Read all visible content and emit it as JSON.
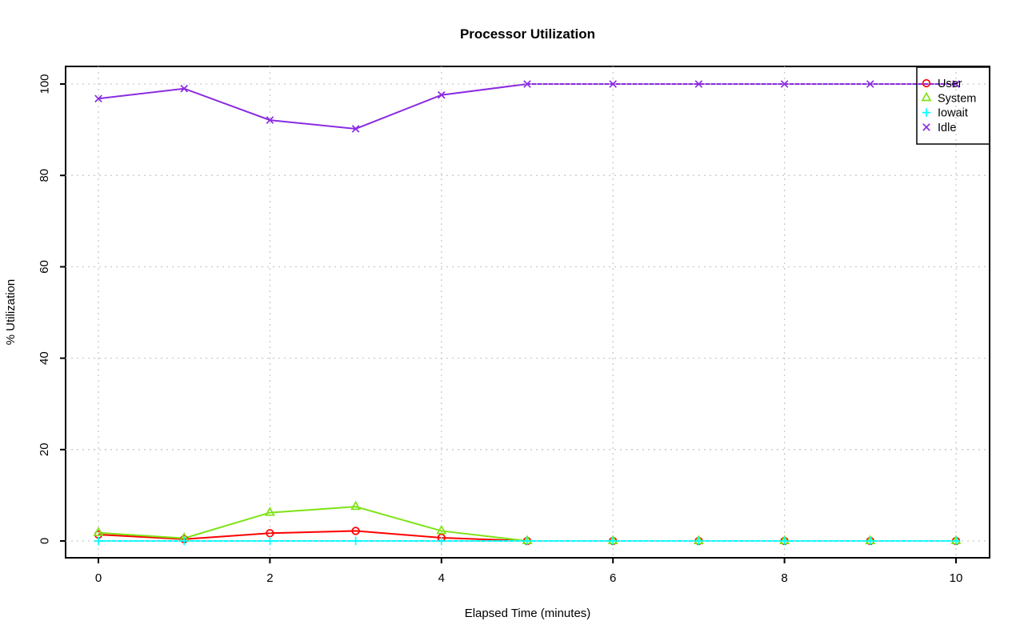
{
  "page": {
    "background_color": "#ffffff",
    "text_color": "#000000"
  },
  "chart_data": {
    "type": "line",
    "title": "Processor Utilization",
    "xlabel": "Elapsed Time (minutes)",
    "ylabel": "% Utilization",
    "x": [
      0,
      1,
      2,
      3,
      4,
      5,
      6,
      7,
      8,
      9,
      10
    ],
    "xlim": [
      0,
      10
    ],
    "ylim": [
      0,
      100
    ],
    "xticks": [
      0,
      2,
      4,
      6,
      8,
      10
    ],
    "xtick_labels": [
      "0",
      "2",
      "4",
      "6",
      "8",
      "10"
    ],
    "yticks": [
      0,
      20,
      40,
      60,
      80,
      100
    ],
    "ytick_labels": [
      "0",
      "20",
      "40",
      "60",
      "80",
      "100"
    ],
    "grid": true,
    "grid_color": "#c9c9c9",
    "grid_style": "dotted",
    "legend_position": "topright",
    "legend_labels": [
      "User",
      "System",
      "Iowait",
      "Idle"
    ],
    "series": [
      {
        "name": "User",
        "color": "#ff0000",
        "marker": "circle",
        "line_style": "solid",
        "values": [
          1.4,
          0.4,
          1.7,
          2.2,
          0.7,
          0,
          0,
          0,
          0,
          0,
          0
        ]
      },
      {
        "name": "System",
        "color": "#7de314",
        "marker": "triangle",
        "line_style": "solid",
        "values": [
          1.8,
          0.6,
          6.2,
          7.5,
          2.2,
          0,
          0,
          0,
          0,
          0,
          0
        ]
      },
      {
        "name": "Iowait",
        "color": "#00ffff",
        "marker": "plus",
        "line_style": "solid",
        "values": [
          0,
          0,
          0,
          0,
          0,
          0,
          0,
          0,
          0,
          0,
          0
        ]
      },
      {
        "name": "Idle",
        "color": "#8a2be2",
        "marker": "x",
        "line_style": "solid",
        "values": [
          96.8,
          99,
          92.1,
          90.2,
          97.6,
          100,
          100,
          100,
          100,
          100,
          100
        ]
      }
    ]
  }
}
